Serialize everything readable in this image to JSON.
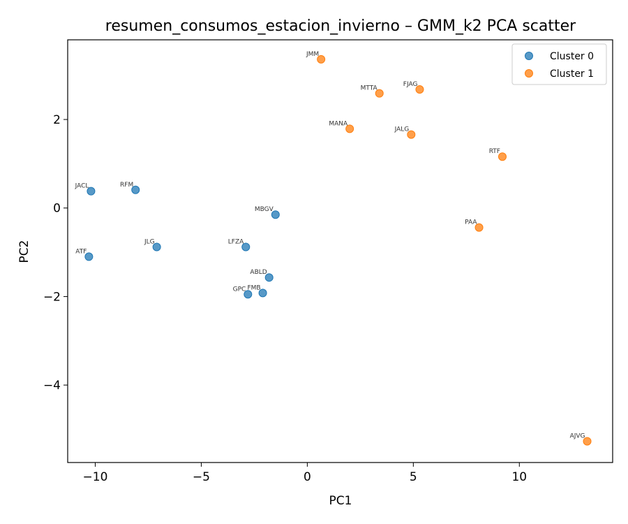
{
  "chart_data": {
    "type": "scatter",
    "title": "resumen_consumos_estacion_invierno – GMM_k2 PCA scatter",
    "xlabel": "PC1",
    "ylabel": "PC2",
    "xlim": [
      -11.3,
      14.4
    ],
    "ylim": [
      -5.75,
      3.8
    ],
    "xticks": [
      -10,
      -5,
      0,
      5,
      10
    ],
    "yticks": [
      -4,
      -2,
      0,
      2
    ],
    "grid": false,
    "legend_position": "top-right",
    "series": [
      {
        "name": "Cluster 0",
        "color": "#1f77b4",
        "points": [
          {
            "label": "JACL",
            "x": -10.2,
            "y": 0.38
          },
          {
            "label": "RFM",
            "x": -8.1,
            "y": 0.41
          },
          {
            "label": "ATF",
            "x": -10.3,
            "y": -1.1
          },
          {
            "label": "JLG",
            "x": -7.1,
            "y": -0.88
          },
          {
            "label": "MBGV",
            "x": -1.5,
            "y": -0.15
          },
          {
            "label": "LFZA",
            "x": -2.9,
            "y": -0.88
          },
          {
            "label": "ABLD",
            "x": -1.8,
            "y": -1.57
          },
          {
            "label": "GPC",
            "x": -2.8,
            "y": -1.95
          },
          {
            "label": "FMB",
            "x": -2.1,
            "y": -1.92
          }
        ]
      },
      {
        "name": "Cluster 1",
        "color": "#ff7f0e",
        "points": [
          {
            "label": "JMM",
            "x": 0.65,
            "y": 3.36
          },
          {
            "label": "MTTA",
            "x": 3.4,
            "y": 2.59
          },
          {
            "label": "FJAG",
            "x": 5.3,
            "y": 2.68
          },
          {
            "label": "MANA",
            "x": 2.0,
            "y": 1.79
          },
          {
            "label": "JALG",
            "x": 4.9,
            "y": 1.66
          },
          {
            "label": "RTF",
            "x": 9.2,
            "y": 1.16
          },
          {
            "label": "PAA",
            "x": 8.1,
            "y": -0.44
          },
          {
            "label": "AJVG",
            "x": 13.2,
            "y": -5.27
          }
        ]
      }
    ]
  }
}
